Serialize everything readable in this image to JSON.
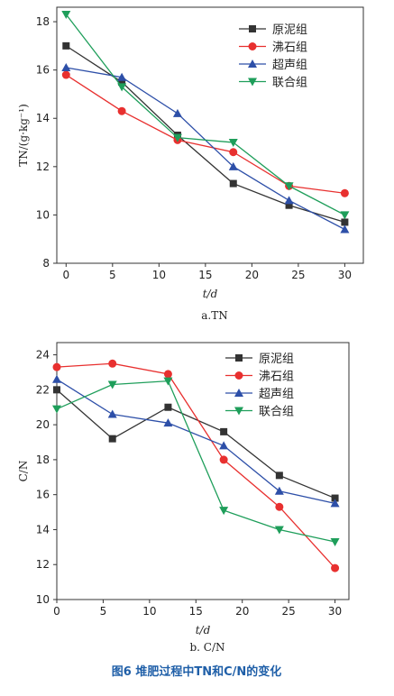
{
  "figure": {
    "caption": "图6  堆肥过程中TN和C/N的变化",
    "caption_color": "#1f5fa8"
  },
  "colors": {
    "原泥组": "#333333",
    "沸石组": "#e8302f",
    "超声组": "#2d4fa8",
    "联合组": "#1e9e5a"
  },
  "markers": {
    "原泥组": "square",
    "沸石组": "circle",
    "超声组": "triangle-up",
    "联合组": "triangle-down"
  },
  "chart_data": [
    {
      "type": "line",
      "subtitle": "a.TN",
      "xlabel": "t/d",
      "ylabel": "TN/(g·kg⁻¹)",
      "x": [
        0,
        6,
        12,
        18,
        24,
        30
      ],
      "xticks": [
        0,
        5,
        10,
        15,
        20,
        25,
        30
      ],
      "yticks": [
        8,
        10,
        12,
        14,
        16,
        18
      ],
      "xlim": [
        -1,
        32
      ],
      "ylim": [
        8,
        18.6
      ],
      "legend": "top-right",
      "grid": false,
      "series": [
        {
          "name": "原泥组",
          "values": [
            17.0,
            15.5,
            13.3,
            11.3,
            10.4,
            9.7
          ]
        },
        {
          "name": "沸石组",
          "values": [
            15.8,
            14.3,
            13.1,
            12.6,
            11.2,
            10.9
          ]
        },
        {
          "name": "超声组",
          "values": [
            16.1,
            15.7,
            14.2,
            12.0,
            10.6,
            9.4
          ]
        },
        {
          "name": "联合组",
          "values": [
            18.3,
            15.3,
            13.2,
            13.0,
            11.2,
            10.0
          ]
        }
      ]
    },
    {
      "type": "line",
      "subtitle": "b. C/N",
      "xlabel": "t/d",
      "ylabel": "C/N",
      "x": [
        0,
        6,
        12,
        18,
        24,
        30
      ],
      "xticks": [
        0,
        5,
        10,
        15,
        20,
        25,
        30
      ],
      "yticks": [
        10,
        12,
        14,
        16,
        18,
        20,
        22,
        24
      ],
      "xlim": [
        0,
        31.5
      ],
      "ylim": [
        10,
        24.7
      ],
      "legend": "top-right",
      "grid": false,
      "series": [
        {
          "name": "原泥组",
          "values": [
            22.0,
            19.2,
            21.0,
            19.6,
            17.1,
            15.8
          ]
        },
        {
          "name": "沸石组",
          "values": [
            23.3,
            23.5,
            22.9,
            18.0,
            15.3,
            11.8
          ]
        },
        {
          "name": "超声组",
          "values": [
            22.6,
            20.6,
            20.1,
            18.8,
            16.2,
            15.5
          ]
        },
        {
          "name": "联合组",
          "values": [
            20.9,
            22.3,
            22.5,
            15.1,
            14.0,
            13.3
          ]
        }
      ]
    }
  ]
}
